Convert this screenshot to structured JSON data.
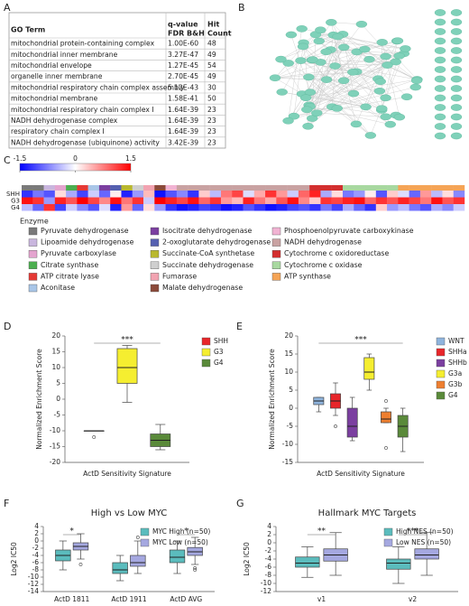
{
  "panels": [
    "A",
    "B",
    "C",
    "D",
    "E",
    "F",
    "G"
  ],
  "table": {
    "header": [
      [
        "GO Term"
      ],
      [
        "q-value",
        "FDR B&H"
      ],
      [
        "Hit",
        "Count"
      ]
    ],
    "rows": [
      [
        "mitochondrial protein-containing complex",
        "1.00E-60",
        48
      ],
      [
        "mitochondrial inner membrane",
        "3.27E-47",
        49
      ],
      [
        "mitochondrial envelope",
        "1.27E-45",
        54
      ],
      [
        "organelle inner membrane",
        "2.70E-45",
        49
      ],
      [
        "mitochondrial respiratory chain complex assembly",
        "5.12E-43",
        30
      ],
      [
        "mitochondrial membrane",
        "1.58E-41",
        50
      ],
      [
        "mitochondrial respiratory chain complex I",
        "1.64E-39",
        23
      ],
      [
        "NADH dehydrogenase complex",
        "1.64E-39",
        23
      ],
      [
        "respiratory chain complex I",
        "1.64E-39",
        23
      ],
      [
        "NADH dehydrogenase (ubiquinone) activity",
        "3.42E-39",
        23
      ]
    ]
  },
  "chart_data": [
    {
      "type": "heatmap",
      "rows": [
        "SHH",
        "G3",
        "G4"
      ],
      "clim": [
        -1.5,
        1.5
      ],
      "colorbar_ticks": [
        -1.5,
        0,
        1.5
      ],
      "legend_title": "Enzyme",
      "groups": [
        {
          "name": "Pyruvate dehydrogenase",
          "color": "#7a7a7a"
        },
        {
          "name": "Lipoamide dehydrogenase",
          "color": "#c9b6de"
        },
        {
          "name": "Pyruvate carboxylase",
          "color": "#e4a4cf"
        },
        {
          "name": "Citrate synthase",
          "color": "#4caf50"
        },
        {
          "name": "ATP citrate lyase",
          "color": "#e53935"
        },
        {
          "name": "Aconitase",
          "color": "#a9c6e8"
        },
        {
          "name": "Isocitrate dehydrogenase",
          "color": "#7b3fa0"
        },
        {
          "name": "2-oxoglutarate dehydrogenase",
          "color": "#5560b0"
        },
        {
          "name": "Succinate-CoA synthetase",
          "color": "#b9b82f"
        },
        {
          "name": "Succinate dehydrogenase",
          "color": "#cfcfcf"
        },
        {
          "name": "Fumarase",
          "color": "#f2a3b1"
        },
        {
          "name": "Malate dehydrogenase",
          "color": "#8b4a3a"
        },
        {
          "name": "Phosphoenolpyruvate carboxykinase",
          "color": "#f1b3d3"
        },
        {
          "name": "NADH dehydrogenase",
          "color": "#c9a2a2"
        },
        {
          "name": "Cytochrome c oxidoreductase",
          "color": "#d32f2f"
        },
        {
          "name": "Cytochrome c oxidase",
          "color": "#a8d8a0"
        },
        {
          "name": "ATP synthase",
          "color": "#f5a456"
        }
      ],
      "column_groups": [
        0,
        0,
        1,
        2,
        3,
        4,
        5,
        6,
        7,
        8,
        9,
        10,
        11,
        12,
        13,
        13,
        13,
        13,
        13,
        13,
        13,
        13,
        13,
        13,
        13,
        13,
        14,
        14,
        14,
        15,
        15,
        15,
        15,
        15,
        16,
        16,
        16,
        16,
        16,
        16
      ],
      "values": [
        [
          -1.2,
          -0.8,
          -1.0,
          0.2,
          -0.5,
          -1.1,
          -0.3,
          -0.9,
          0.1,
          -1.3,
          -0.6,
          0.4,
          -1.4,
          -1.0,
          -0.7,
          -1.2,
          0.3,
          -0.4,
          0.8,
          1.1,
          -0.2,
          0.5,
          1.2,
          0.6,
          -0.3,
          0.9,
          1.3,
          -0.5,
          0.2,
          -0.8,
          -0.6,
          0.1,
          -1.0,
          0.3,
          -0.2,
          -0.9,
          0.6,
          -0.4,
          0.2,
          -0.7
        ],
        [
          1.4,
          1.2,
          -0.6,
          1.3,
          1.0,
          1.5,
          1.1,
          0.7,
          1.4,
          0.8,
          1.2,
          -0.3,
          1.5,
          1.3,
          1.1,
          1.4,
          0.9,
          1.2,
          0.6,
          0.4,
          1.3,
          0.8,
          0.5,
          1.0,
          1.4,
          0.7,
          0.3,
          1.2,
          1.1,
          1.3,
          1.4,
          0.9,
          1.2,
          1.0,
          1.3,
          1.1,
          0.8,
          1.4,
          1.0,
          1.2
        ],
        [
          -0.4,
          -0.9,
          1.2,
          -1.1,
          -0.3,
          -0.7,
          -1.0,
          -0.2,
          -1.3,
          0.6,
          -0.9,
          0.2,
          -0.6,
          -1.2,
          -1.4,
          -1.3,
          -1.1,
          -1.2,
          -1.4,
          -1.3,
          -1.0,
          -1.2,
          -1.4,
          -1.3,
          -1.1,
          -1.0,
          -1.2,
          -0.8,
          -1.1,
          -0.5,
          -0.9,
          -1.2,
          0.3,
          -0.6,
          -0.4,
          -0.8,
          -1.0,
          -0.5,
          -0.7,
          -0.3
        ]
      ]
    },
    {
      "type": "box",
      "xlabel": "ActD Sensitivity Signature",
      "ylabel": "Normalized Enrichment Score",
      "annotation": "***",
      "ylim": [
        -20,
        20
      ],
      "yticks": [
        -20,
        -15,
        -10,
        -5,
        0,
        5,
        10,
        15,
        20
      ],
      "legend": "right",
      "series": [
        {
          "name": "SHH",
          "color": "#e8262a",
          "values": [
            {
              "min": -10,
              "q1": -10,
              "median": -10,
              "q3": -10,
              "max": -10
            }
          ],
          "outliers": [
            [
              -12
            ]
          ]
        },
        {
          "name": "G3",
          "color": "#f5ee30",
          "values": [
            {
              "min": -1,
              "q1": 5,
              "median": 10,
              "q3": 16,
              "max": 17
            }
          ],
          "outliers": [
            []
          ]
        },
        {
          "name": "G4",
          "color": "#5a8a3a",
          "values": [
            {
              "min": -16,
              "q1": -15,
              "median": -13,
              "q3": -11,
              "max": -8
            }
          ],
          "outliers": [
            []
          ]
        }
      ]
    },
    {
      "type": "box",
      "xlabel": "ActD Sensitivity Signature",
      "ylabel": "Normalized Enrichment Score",
      "annotation": "***",
      "ylim": [
        -15,
        20
      ],
      "yticks": [
        -15,
        -10,
        -5,
        0,
        5,
        10,
        15,
        20
      ],
      "legend": "right",
      "series": [
        {
          "name": "WNT",
          "color": "#8fb4dd",
          "values": [
            {
              "min": -1,
              "q1": 1,
              "median": 2,
              "q3": 3,
              "max": 3
            }
          ],
          "outliers": [
            []
          ]
        },
        {
          "name": "SHHa",
          "color": "#e8262a",
          "values": [
            {
              "min": -2,
              "q1": 0,
              "median": 2,
              "q3": 4,
              "max": 7
            }
          ],
          "outliers": [
            [
              -5
            ]
          ]
        },
        {
          "name": "SHHb",
          "color": "#7b3fa0",
          "values": [
            {
              "min": -9,
              "q1": -8,
              "median": -5,
              "q3": 0,
              "max": 3
            }
          ],
          "outliers": [
            []
          ]
        },
        {
          "name": "G3a",
          "color": "#f5ee30",
          "values": [
            {
              "min": 5,
              "q1": 8,
              "median": 10,
              "q3": 14,
              "max": 15
            }
          ],
          "outliers": [
            []
          ]
        },
        {
          "name": "G3b",
          "color": "#ee7f30",
          "values": [
            {
              "min": -4,
              "q1": -4,
              "median": -3,
              "q3": -1,
              "max": 0
            }
          ],
          "outliers": [
            [
              2,
              -11
            ]
          ]
        },
        {
          "name": "G4",
          "color": "#5a8a3a",
          "values": [
            {
              "min": -12,
              "q1": -8,
              "median": -5,
              "q3": -2,
              "max": 0
            }
          ],
          "outliers": [
            []
          ]
        }
      ]
    },
    {
      "type": "box",
      "title": "High vs Low MYC",
      "ylabel": "Log2 IC50",
      "categories": [
        "ActD 1811",
        "ActD 1911",
        "ActD AVG"
      ],
      "ylim": [
        -14,
        4
      ],
      "yticks": [
        -14,
        -12,
        -10,
        -8,
        -6,
        -4,
        -2,
        0,
        2,
        4
      ],
      "legend": "upper right",
      "annotations": [
        {
          "category": "ActD 1811",
          "text": "*"
        },
        {
          "category": "ActD AVG",
          "text": "*"
        }
      ],
      "series": [
        {
          "name": "MYC High (n=50)",
          "color": "#5bbcbd",
          "values": [
            {
              "min": -8,
              "q1": -5.5,
              "median": -4,
              "q3": -2.5,
              "max": 0
            },
            {
              "min": -11,
              "q1": -9,
              "median": -8,
              "q3": -6,
              "max": -4
            },
            {
              "min": -9,
              "q1": -6,
              "median": -4.5,
              "q3": -2.5,
              "max": 0
            }
          ],
          "outliers": [
            [],
            [],
            []
          ]
        },
        {
          "name": "MYC Low (n=50)",
          "color": "#a5a8e0",
          "values": [
            {
              "min": -5,
              "q1": -2.5,
              "median": -1.5,
              "q3": -0.5,
              "max": 2
            },
            {
              "min": -9,
              "q1": -7,
              "median": -6,
              "q3": -4,
              "max": 0
            },
            {
              "min": -6.5,
              "q1": -4,
              "median": -3,
              "q3": -1.8,
              "max": 1
            }
          ],
          "outliers": [
            [
              -6.5
            ],
            [
              1
            ],
            [
              -7.5,
              -8
            ]
          ]
        }
      ]
    },
    {
      "type": "box",
      "title": "Hallmark MYC Targets",
      "ylabel": "Log2 IC50",
      "categories": [
        "v1",
        "v2"
      ],
      "ylim": [
        -12,
        4
      ],
      "yticks": [
        -12,
        -10,
        -8,
        -6,
        -4,
        -2,
        0,
        2,
        4
      ],
      "legend": "upper right",
      "annotations": [
        {
          "category": "v1",
          "text": "**"
        },
        {
          "category": "v2",
          "text": "***"
        }
      ],
      "series": [
        {
          "name": "High NES (n=50)",
          "color": "#5bbcbd",
          "values": [
            {
              "min": -8.5,
              "q1": -6,
              "median": -5,
              "q3": -3.5,
              "max": -1
            },
            {
              "min": -10,
              "q1": -6.5,
              "median": -5,
              "q3": -4,
              "max": -1
            }
          ],
          "outliers": [
            [],
            []
          ]
        },
        {
          "name": "Low NES (n=50)",
          "color": "#a5a8e0",
          "values": [
            {
              "min": -8,
              "q1": -4.5,
              "median": -3,
              "q3": -1.5,
              "max": 2.5
            },
            {
              "min": -8,
              "q1": -4,
              "median": -3,
              "q3": -1.5,
              "max": 2.5
            }
          ],
          "outliers": [
            [],
            []
          ]
        }
      ]
    }
  ]
}
